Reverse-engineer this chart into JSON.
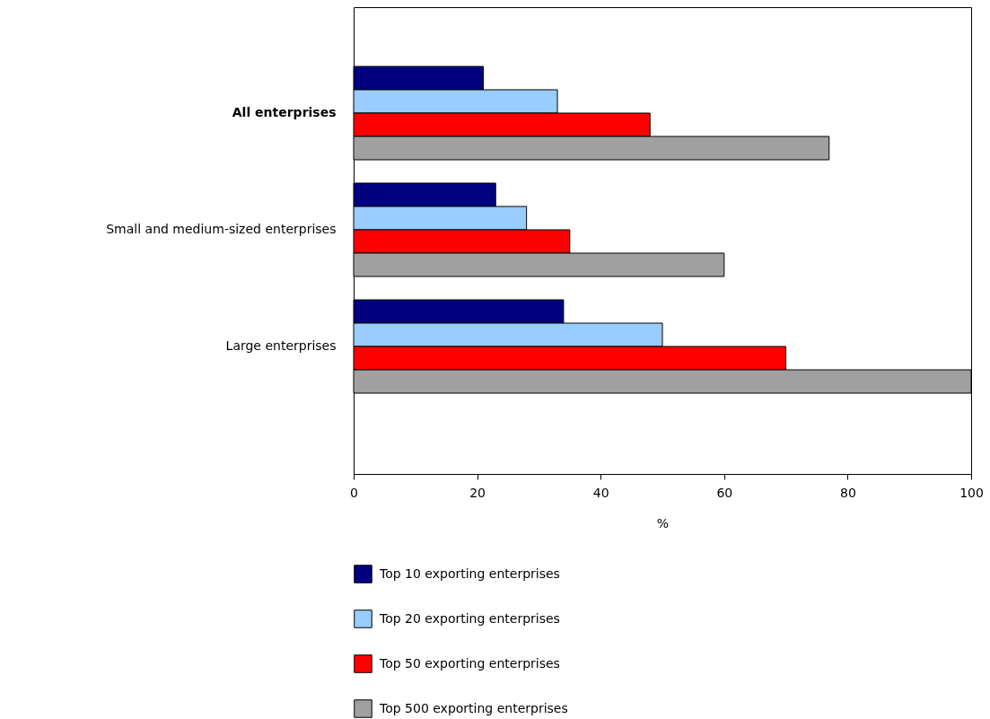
{
  "chart_data": {
    "type": "bar",
    "orientation": "horizontal",
    "xlabel": "%",
    "categories": [
      "All enterprises",
      "Small and medium-sized enterprises",
      "Large enterprises"
    ],
    "series": [
      {
        "name": "Top 10 exporting enterprises",
        "color": "#000080",
        "values": [
          21,
          23,
          34
        ]
      },
      {
        "name": "Top 20 exporting enterprises",
        "color": "#99ccff",
        "values": [
          33,
          28,
          50
        ]
      },
      {
        "name": "Top 50 exporting enterprises",
        "color": "#ff0000",
        "values": [
          48,
          35,
          70
        ]
      },
      {
        "name": "Top 500 exporting enterprises",
        "color": "#a0a0a0",
        "values": [
          77,
          60,
          100
        ]
      }
    ],
    "xlim": [
      0,
      100
    ],
    "xticks": [
      0,
      20,
      40,
      60,
      80,
      100
    ],
    "grid": false,
    "legend": "bottom"
  }
}
